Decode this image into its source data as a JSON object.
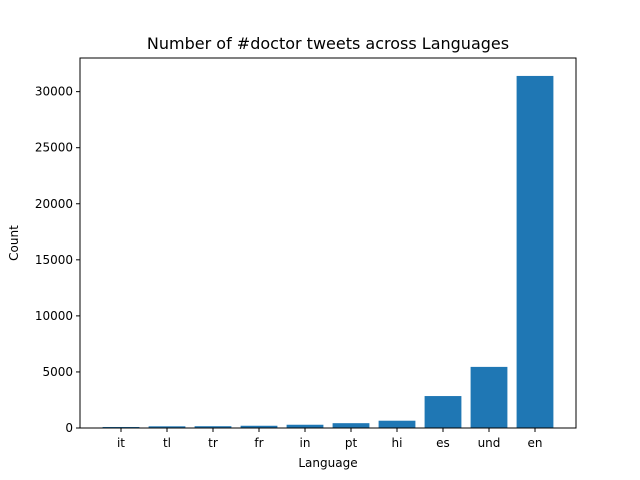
{
  "chart_data": {
    "type": "bar",
    "title": "Number of #doctor tweets across Languages",
    "xlabel": "Language",
    "ylabel": "Count",
    "categories": [
      "it",
      "tl",
      "tr",
      "fr",
      "in",
      "pt",
      "hi",
      "es",
      "und",
      "en"
    ],
    "values": [
      90,
      150,
      160,
      200,
      290,
      430,
      650,
      2850,
      5450,
      31400
    ],
    "ylim": [
      0,
      33000
    ],
    "yticks": [
      0,
      5000,
      10000,
      15000,
      20000,
      25000,
      30000
    ],
    "grid": false,
    "legend": "none",
    "bar_color": "#1f77b4"
  }
}
